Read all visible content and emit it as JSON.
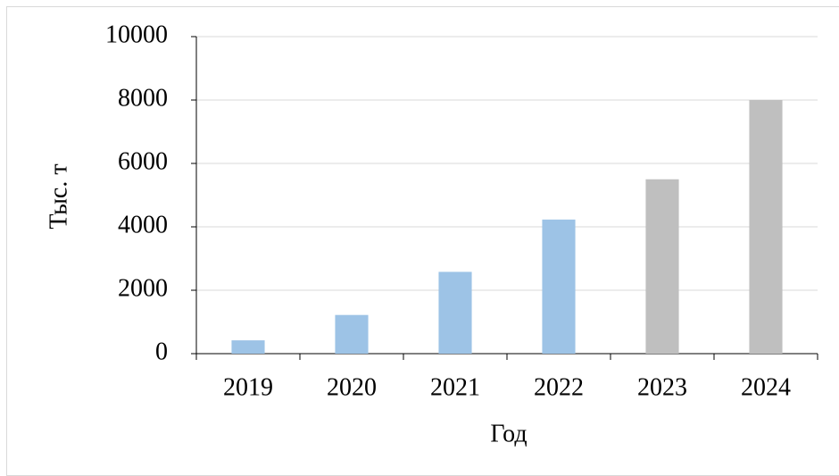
{
  "chart_data": {
    "type": "bar",
    "x_label": "Год",
    "y_label": "Тыс. т",
    "categories": [
      "2019",
      "2020",
      "2021",
      "2022",
      "2023",
      "2024"
    ],
    "values": [
      420,
      1220,
      2580,
      4230,
      5500,
      8000
    ],
    "colors": [
      "#9dc3e6",
      "#9dc3e6",
      "#9dc3e6",
      "#9dc3e6",
      "#bfbfbf",
      "#bfbfbf"
    ],
    "ylim": [
      0,
      10000
    ],
    "yticks": [
      0,
      2000,
      4000,
      6000,
      8000,
      10000
    ],
    "grid": true
  }
}
